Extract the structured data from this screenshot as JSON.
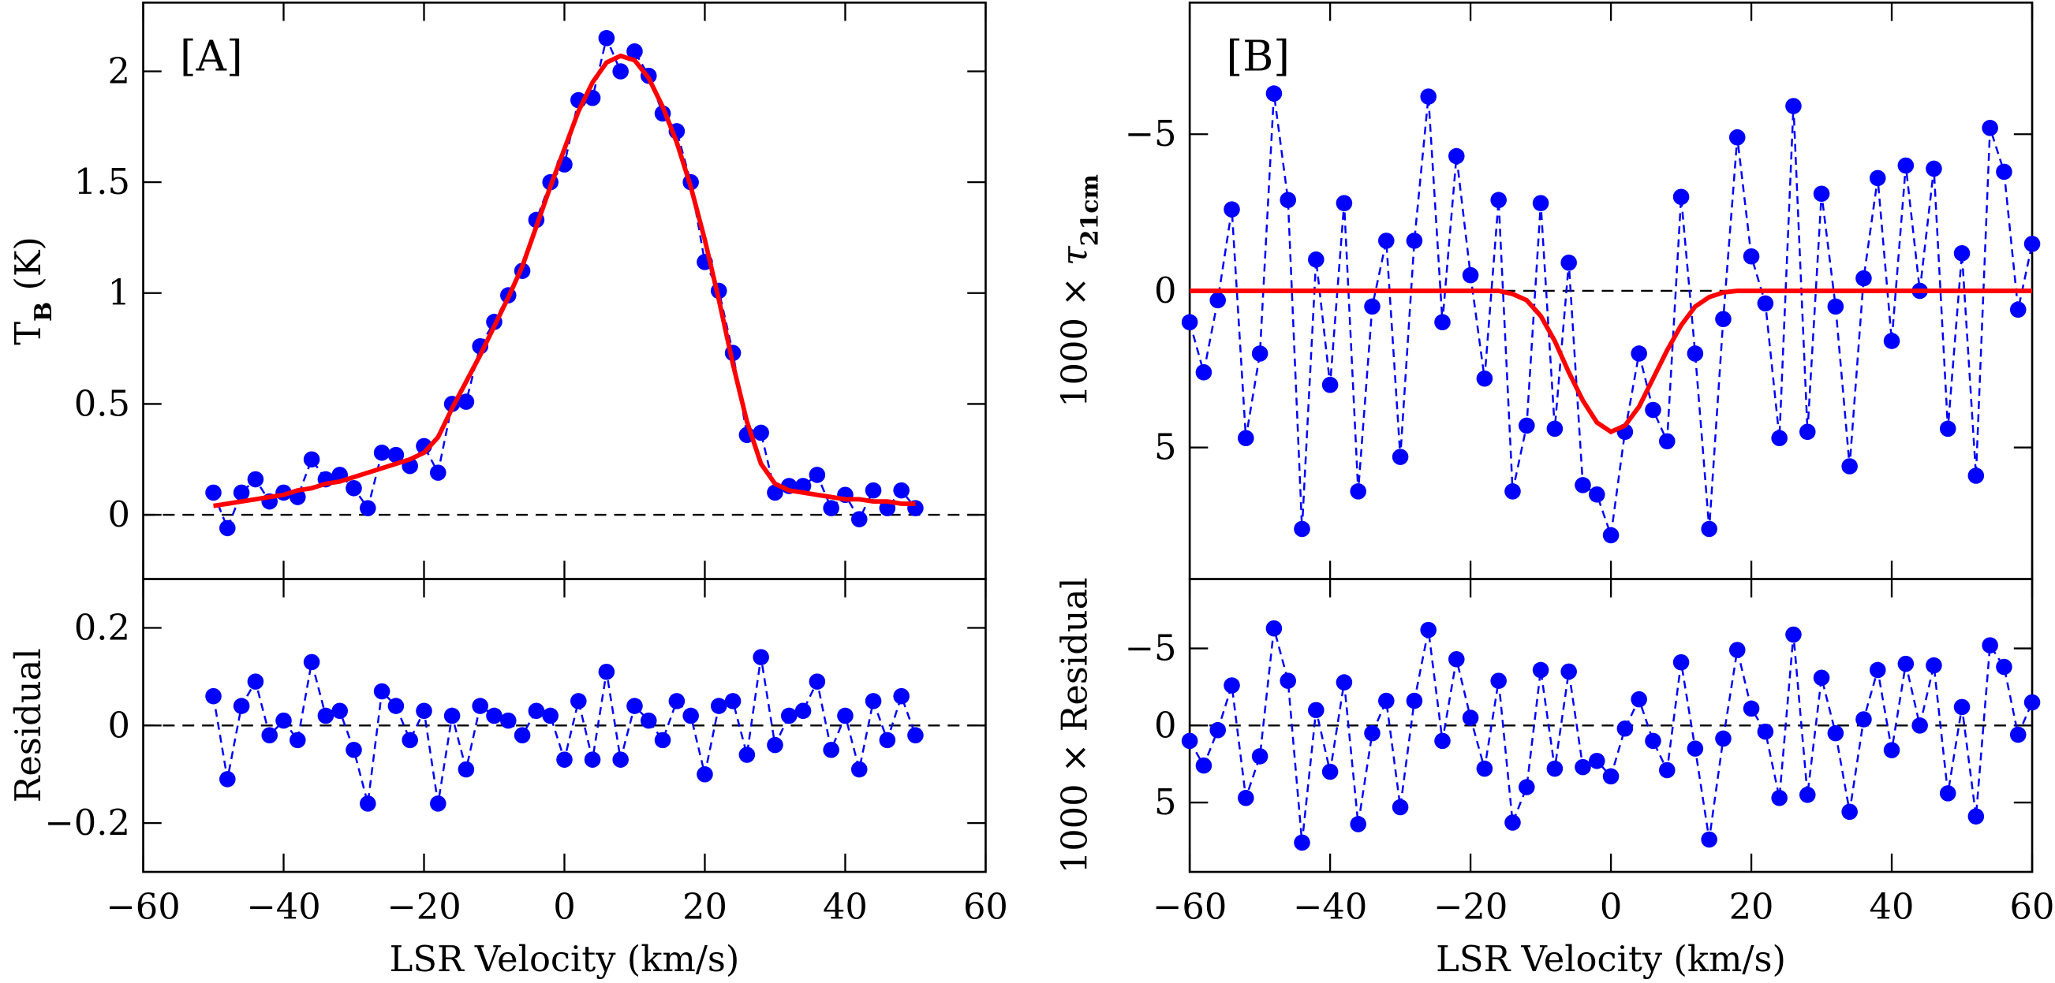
{
  "chart_data": [
    {
      "type": "scatter",
      "panel": "[A]",
      "ylabel": [
        {
          "t": "T"
        },
        {
          "t": "B",
          "sub": true
        },
        {
          "t": " (K)"
        }
      ],
      "x": [
        -50,
        -48,
        -46,
        -44,
        -42,
        -40,
        -38,
        -36,
        -34,
        -32,
        -30,
        -28,
        -26,
        -24,
        -22,
        -20,
        -18,
        -16,
        -14,
        -12,
        -10,
        -8,
        -6,
        -4,
        -2,
        0,
        2,
        4,
        6,
        8,
        10,
        12,
        14,
        16,
        18,
        20,
        22,
        24,
        26,
        28,
        30,
        32,
        34,
        36,
        38,
        40,
        42,
        44,
        46,
        48,
        50
      ],
      "series": [
        {
          "style": "points",
          "color": "#0000ff",
          "values": [
            0.1,
            -0.06,
            0.1,
            0.16,
            0.06,
            0.1,
            0.08,
            0.25,
            0.16,
            0.18,
            0.12,
            0.03,
            0.28,
            0.27,
            0.22,
            0.31,
            0.19,
            0.5,
            0.51,
            0.76,
            0.87,
            0.99,
            1.1,
            1.33,
            1.5,
            1.58,
            1.87,
            1.88,
            2.15,
            2.0,
            2.09,
            1.98,
            1.81,
            1.73,
            1.5,
            1.14,
            1.01,
            0.73,
            0.36,
            0.37,
            0.1,
            0.13,
            0.13,
            0.18,
            0.03,
            0.09,
            -0.02,
            0.11,
            0.03,
            0.11,
            0.03
          ]
        },
        {
          "style": "line",
          "color": "#ff0000",
          "values": [
            0.04,
            0.05,
            0.06,
            0.07,
            0.08,
            0.09,
            0.11,
            0.12,
            0.14,
            0.15,
            0.17,
            0.19,
            0.21,
            0.23,
            0.25,
            0.28,
            0.35,
            0.48,
            0.6,
            0.72,
            0.85,
            0.98,
            1.12,
            1.3,
            1.48,
            1.65,
            1.82,
            1.95,
            2.04,
            2.07,
            2.05,
            1.97,
            1.84,
            1.68,
            1.48,
            1.24,
            0.97,
            0.68,
            0.42,
            0.23,
            0.14,
            0.11,
            0.1,
            0.09,
            0.08,
            0.07,
            0.07,
            0.06,
            0.06,
            0.05,
            0.05
          ]
        }
      ],
      "hline": 0,
      "xlim": [
        -60,
        60
      ],
      "ylim": [
        -0.29,
        2.31
      ],
      "xticks": [
        -60,
        -40,
        -20,
        0,
        20,
        40,
        60
      ],
      "xticklabels": false,
      "yticks": [
        0,
        0.5,
        1,
        1.5,
        2
      ]
    },
    {
      "type": "scatter",
      "ylabel": [
        {
          "t": "Residual"
        }
      ],
      "xlabel": "LSR Velocity (km/s)",
      "x": [
        -50,
        -48,
        -46,
        -44,
        -42,
        -40,
        -38,
        -36,
        -34,
        -32,
        -30,
        -28,
        -26,
        -24,
        -22,
        -20,
        -18,
        -16,
        -14,
        -12,
        -10,
        -8,
        -6,
        -4,
        -2,
        0,
        2,
        4,
        6,
        8,
        10,
        12,
        14,
        16,
        18,
        20,
        22,
        24,
        26,
        28,
        30,
        32,
        34,
        36,
        38,
        40,
        42,
        44,
        46,
        48,
        50
      ],
      "series": [
        {
          "style": "points",
          "color": "#0000ff",
          "values": [
            0.06,
            -0.11,
            0.04,
            0.09,
            -0.02,
            0.01,
            -0.03,
            0.13,
            0.02,
            0.03,
            -0.05,
            -0.16,
            0.07,
            0.04,
            -0.03,
            0.03,
            -0.16,
            0.02,
            -0.09,
            0.04,
            0.02,
            0.01,
            -0.02,
            0.03,
            0.02,
            -0.07,
            0.05,
            -0.07,
            0.11,
            -0.07,
            0.04,
            0.01,
            -0.03,
            0.05,
            0.02,
            -0.1,
            0.04,
            0.05,
            -0.06,
            0.14,
            -0.04,
            0.02,
            0.03,
            0.09,
            -0.05,
            0.02,
            -0.09,
            0.05,
            -0.03,
            0.06,
            -0.02
          ]
        }
      ],
      "hline": 0,
      "xlim": [
        -60,
        60
      ],
      "ylim": [
        -0.3,
        0.3
      ],
      "xticks": [
        {
          "value": -60,
          "label": "−60"
        },
        {
          "value": -40,
          "label": "−40"
        },
        {
          "value": -20,
          "label": "−20"
        },
        0,
        20,
        40,
        60
      ],
      "xticklabels": true,
      "yticks": [
        {
          "value": -0.2,
          "label": "−0.2"
        },
        0,
        0.2
      ]
    },
    {
      "type": "scatter",
      "panel": "[B]",
      "ylabel": [
        {
          "t": "1000 × "
        },
        {
          "t": "τ",
          "italic": true
        },
        {
          "t": "21cm",
          "sub": true
        }
      ],
      "x": [
        -60,
        -58,
        -56,
        -54,
        -52,
        -50,
        -48,
        -46,
        -44,
        -42,
        -40,
        -38,
        -36,
        -34,
        -32,
        -30,
        -28,
        -26,
        -24,
        -22,
        -20,
        -18,
        -16,
        -14,
        -12,
        -10,
        -8,
        -6,
        -4,
        -2,
        0,
        2,
        4,
        6,
        8,
        10,
        12,
        14,
        16,
        18,
        20,
        22,
        24,
        26,
        28,
        30,
        32,
        34,
        36,
        38,
        40,
        42,
        44,
        46,
        48,
        50,
        52,
        54,
        56,
        58,
        60
      ],
      "series": [
        {
          "style": "points",
          "color": "#0000ff",
          "values": [
            1.0,
            2.6,
            0.3,
            -2.6,
            4.7,
            2.0,
            -6.3,
            -2.9,
            7.6,
            -1.0,
            3.0,
            -2.8,
            6.4,
            0.5,
            -1.6,
            5.3,
            -1.6,
            -6.2,
            1.0,
            -4.3,
            -0.5,
            2.8,
            -2.9,
            6.4,
            4.3,
            -2.8,
            4.4,
            -0.9,
            6.2,
            6.5,
            7.8,
            4.5,
            2.0,
            3.8,
            4.8,
            -3.0,
            2.0,
            7.6,
            0.9,
            -4.9,
            -1.1,
            0.4,
            4.7,
            -5.9,
            4.5,
            -3.1,
            0.5,
            5.6,
            -0.4,
            -3.6,
            1.6,
            -4.0,
            0.0,
            -3.9,
            4.4,
            -1.2,
            5.9,
            -5.2,
            -3.8,
            0.6,
            -1.5
          ]
        },
        {
          "style": "line",
          "color": "#ff0000",
          "values": [
            0,
            0,
            0,
            0,
            0,
            0,
            0,
            0,
            0,
            0,
            0,
            0,
            0,
            0,
            0,
            0,
            0,
            0,
            0,
            0,
            0,
            0,
            0,
            0.1,
            0.3,
            0.8,
            1.6,
            2.6,
            3.5,
            4.2,
            4.5,
            4.3,
            3.7,
            2.8,
            1.9,
            1.1,
            0.5,
            0.2,
            0.05,
            0,
            0,
            0,
            0,
            0,
            0,
            0,
            0,
            0,
            0,
            0,
            0,
            0,
            0,
            0,
            0,
            0,
            0,
            0,
            0,
            0,
            0
          ]
        }
      ],
      "hline": 0,
      "xlim": [
        -60,
        60
      ],
      "ylim": [
        9.2,
        -9.2
      ],
      "xticks": [
        -60,
        -40,
        -20,
        0,
        20,
        40,
        60
      ],
      "xticklabels": false,
      "yticks": [
        {
          "value": -5,
          "label": "−5"
        },
        0,
        5
      ]
    },
    {
      "type": "scatter",
      "ylabel": [
        {
          "t": "1000 × Residual"
        }
      ],
      "xlabel": "LSR Velocity (km/s)",
      "x": [
        -60,
        -58,
        -56,
        -54,
        -52,
        -50,
        -48,
        -46,
        -44,
        -42,
        -40,
        -38,
        -36,
        -34,
        -32,
        -30,
        -28,
        -26,
        -24,
        -22,
        -20,
        -18,
        -16,
        -14,
        -12,
        -10,
        -8,
        -6,
        -4,
        -2,
        0,
        2,
        4,
        6,
        8,
        10,
        12,
        14,
        16,
        18,
        20,
        22,
        24,
        26,
        28,
        30,
        32,
        34,
        36,
        38,
        40,
        42,
        44,
        46,
        48,
        50,
        52,
        54,
        56,
        58,
        60
      ],
      "series": [
        {
          "style": "points",
          "color": "#0000ff",
          "values": [
            1.0,
            2.6,
            0.3,
            -2.6,
            4.7,
            2.0,
            -6.3,
            -2.9,
            7.6,
            -1.0,
            3.0,
            -2.8,
            6.4,
            0.5,
            -1.6,
            5.3,
            -1.6,
            -6.2,
            1.0,
            -4.3,
            -0.5,
            2.8,
            -2.9,
            6.3,
            4.0,
            -3.6,
            2.8,
            -3.5,
            2.7,
            2.3,
            3.3,
            0.2,
            -1.7,
            1.0,
            2.9,
            -4.1,
            1.5,
            7.4,
            0.85,
            -4.9,
            -1.1,
            0.4,
            4.7,
            -5.9,
            4.5,
            -3.1,
            0.5,
            5.6,
            -0.4,
            -3.6,
            1.6,
            -4.0,
            0.0,
            -3.9,
            4.4,
            -1.2,
            5.9,
            -5.2,
            -3.8,
            0.6,
            -1.5
          ]
        }
      ],
      "hline": 0,
      "xlim": [
        -60,
        60
      ],
      "ylim": [
        9.5,
        -9.5
      ],
      "xticks": [
        {
          "value": -60,
          "label": "−60"
        },
        {
          "value": -40,
          "label": "−40"
        },
        {
          "value": -20,
          "label": "−20"
        },
        0,
        20,
        40,
        60
      ],
      "xticklabels": true,
      "yticks": [
        {
          "value": -5,
          "label": "−5"
        },
        0,
        5
      ]
    }
  ]
}
